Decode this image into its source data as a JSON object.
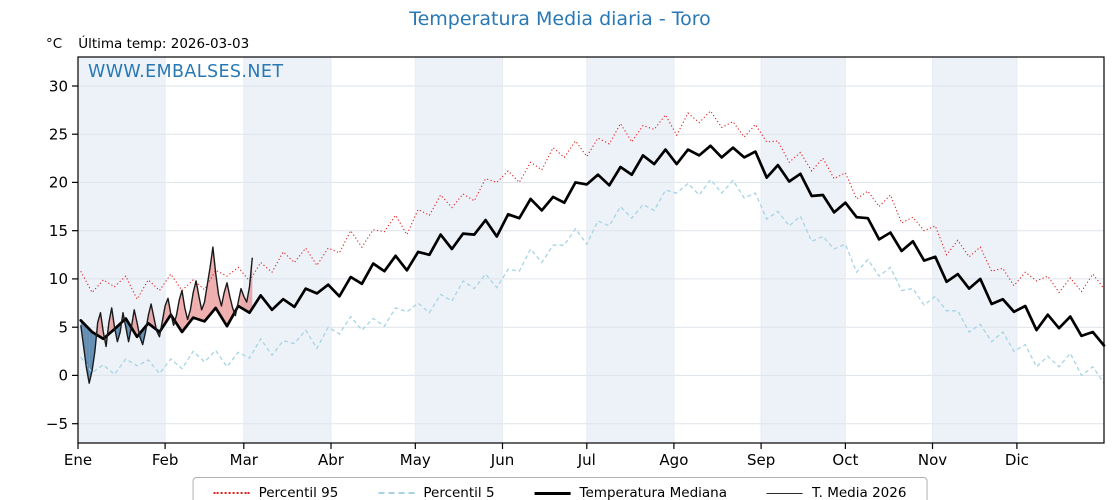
{
  "header": {
    "title": "Temperatura Media diaria - Toro",
    "unit_label": "°C",
    "last_temp_label": "Última temp: 2026-03-03",
    "watermark": "WWW.EMBALSES.NET"
  },
  "legend": {
    "items": [
      {
        "label": "Percentil 95",
        "swatch": "dotted-red-line"
      },
      {
        "label": "Percentil 5",
        "swatch": "dashed-lightblue-line"
      },
      {
        "label": "Temperatura Mediana",
        "swatch": "thick-black-line"
      },
      {
        "label": "T. Media 2026",
        "swatch": "thin-black-line"
      }
    ]
  },
  "colors": {
    "title_blue": "#2878b5",
    "p95_red": "#e02020",
    "p5_lightblue": "#a6d4e4",
    "median_black": "#000000",
    "t2026_dark": "#1a1a1a",
    "band_tint": "#edf2f8",
    "grid_h": "#dde3ea",
    "grid_v": "#e7ecf2",
    "fill_above": "#e06060",
    "fill_below": "#4a7ca8"
  },
  "chart_data": {
    "type": "line",
    "title": "Temperatura Media diaria - Toro",
    "ylabel": "°C",
    "annotation": "Última temp: 2026-03-03",
    "y_ticks": [
      30,
      25,
      20,
      15,
      10,
      5,
      0,
      -5
    ],
    "y_range": [
      -7,
      33
    ],
    "x_months": [
      "Ene",
      "Feb",
      "Mar",
      "Abr",
      "May",
      "Jun",
      "Jul",
      "Ago",
      "Sep",
      "Oct",
      "Nov",
      "Dic"
    ],
    "month_boundaries": [
      0,
      31,
      59,
      90,
      120,
      151,
      181,
      212,
      243,
      273,
      304,
      334,
      365
    ],
    "legend_position": "bottom-center",
    "grid": true,
    "sample_start_day": 1,
    "sample_step_days": 4,
    "series": [
      {
        "name": "Percentil 95",
        "style": "dotted",
        "color": "#e02020",
        "values": [
          10.8,
          8.6,
          9.9,
          9.2,
          10.3,
          7.9,
          9.9,
          8.8,
          10.5,
          8.8,
          9.9,
          8.9,
          10.9,
          10.3,
          11.2,
          9.8,
          11.7,
          10.7,
          12.8,
          11.7,
          13.2,
          11.4,
          13.2,
          12.7,
          15.0,
          13.3,
          15.1,
          14.9,
          16.6,
          14.6,
          17.2,
          16.6,
          18.7,
          17.4,
          18.8,
          18.1,
          20.4,
          20.0,
          21.2,
          20.0,
          22.1,
          21.3,
          23.6,
          22.6,
          24.3,
          22.7,
          24.6,
          24.0,
          26.1,
          24.2,
          25.9,
          25.5,
          27.0,
          24.9,
          27.2,
          26.2,
          27.4,
          25.7,
          26.3,
          24.7,
          26.0,
          24.2,
          24.3,
          22.1,
          23.1,
          21.2,
          22.5,
          20.4,
          21.0,
          18.3,
          19.1,
          17.5,
          18.7,
          15.8,
          16.4,
          15.0,
          15.5,
          12.5,
          14.0,
          12.3,
          13.3,
          10.8,
          11.1,
          9.3,
          10.7,
          9.8,
          10.3,
          8.6,
          10.1,
          8.7,
          10.5,
          9.0
        ]
      },
      {
        "name": "Percentil 5",
        "style": "dashed",
        "color": "#a6d4e4",
        "values": [
          1.9,
          0.3,
          1.1,
          0.1,
          1.7,
          1.0,
          1.6,
          0.2,
          1.7,
          0.7,
          2.5,
          1.4,
          2.6,
          0.9,
          2.4,
          1.8,
          3.8,
          2.1,
          3.6,
          3.3,
          4.7,
          2.8,
          5.0,
          4.3,
          6.1,
          4.7,
          5.9,
          5.1,
          7.0,
          6.6,
          7.5,
          6.5,
          8.4,
          7.7,
          9.8,
          9.0,
          10.5,
          9.1,
          11.0,
          10.8,
          13.1,
          11.7,
          13.5,
          13.5,
          15.2,
          13.6,
          16.0,
          15.5,
          17.5,
          16.3,
          17.7,
          17.1,
          19.2,
          18.9,
          19.9,
          18.7,
          20.3,
          18.9,
          20.2,
          18.4,
          18.9,
          16.2,
          17.0,
          15.5,
          16.5,
          13.9,
          14.4,
          13.1,
          13.6,
          10.7,
          12.0,
          10.3,
          11.2,
          8.8,
          9.0,
          7.3,
          8.2,
          6.7,
          6.7,
          4.5,
          5.3,
          3.5,
          4.5,
          2.5,
          3.2,
          0.9,
          2.0,
          0.9,
          2.3,
          0.0,
          0.9,
          -0.8
        ]
      },
      {
        "name": "Temperatura Mediana",
        "style": "solid-thick",
        "color": "#000000",
        "values": [
          5.7,
          4.5,
          3.8,
          4.8,
          5.9,
          4.0,
          5.4,
          4.5,
          6.3,
          4.5,
          6.0,
          5.6,
          7.0,
          5.1,
          7.2,
          6.5,
          8.3,
          6.8,
          7.9,
          7.1,
          9.0,
          8.5,
          9.4,
          8.2,
          10.2,
          9.5,
          11.6,
          10.8,
          12.4,
          10.9,
          12.8,
          12.5,
          14.6,
          13.1,
          14.7,
          14.6,
          16.1,
          14.4,
          16.7,
          16.3,
          18.3,
          17.1,
          18.5,
          17.9,
          20.0,
          19.8,
          20.8,
          19.7,
          21.6,
          20.8,
          22.8,
          21.9,
          23.4,
          21.9,
          23.4,
          22.8,
          23.8,
          22.6,
          23.6,
          22.6,
          23.2,
          20.5,
          21.8,
          20.1,
          20.9,
          18.6,
          18.7,
          16.9,
          17.9,
          16.4,
          16.3,
          14.1,
          14.8,
          12.9,
          13.9,
          11.9,
          12.3,
          9.7,
          10.5,
          9.0,
          10.0,
          7.4,
          7.9,
          6.6,
          7.2,
          4.7,
          6.3,
          4.9,
          6.1,
          4.1,
          4.5,
          3.1
        ]
      },
      {
        "name": "T. Media 2026",
        "style": "solid-thin",
        "color": "#1a1a1a",
        "x_start_day": 1,
        "x_step_days": 1,
        "fill_above_color": "#e06060",
        "fill_below_color": "#4a7ca8",
        "values": [
          5.2,
          3.0,
          0.8,
          -0.8,
          0.5,
          2.5,
          5.5,
          6.5,
          4.5,
          3.0,
          5.5,
          7.0,
          5.0,
          3.5,
          4.5,
          6.5,
          5.0,
          3.5,
          5.0,
          6.8,
          5.5,
          4.0,
          3.2,
          4.5,
          6.2,
          7.4,
          6.0,
          4.6,
          4.0,
          5.6,
          7.2,
          8.0,
          6.4,
          5.2,
          6.2,
          7.8,
          8.8,
          7.0,
          5.8,
          6.8,
          8.6,
          9.8,
          8.2,
          6.8,
          7.6,
          9.4,
          11.2,
          13.3,
          10.6,
          8.4,
          7.2,
          8.6,
          9.6,
          8.2,
          7.0,
          6.2,
          7.6,
          9.0,
          8.2,
          7.6,
          9.2,
          12.2
        ]
      }
    ]
  }
}
